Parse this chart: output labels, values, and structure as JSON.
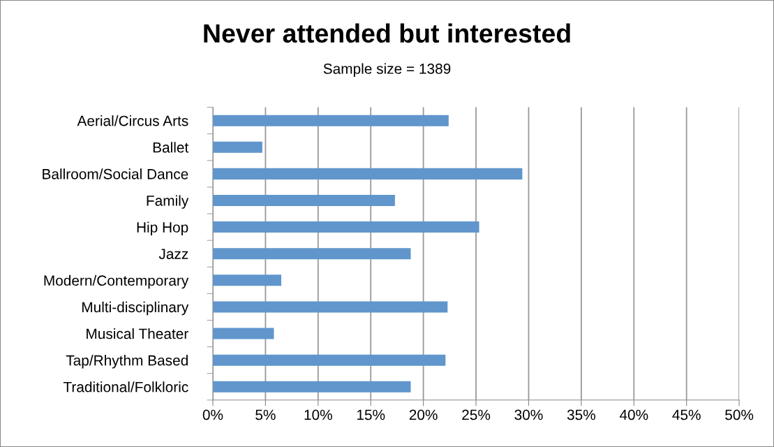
{
  "chart_data": {
    "type": "bar",
    "orientation": "horizontal",
    "title": "Never attended but interested",
    "subtitle": "Sample size = 1389",
    "categories": [
      "Aerial/Circus Arts",
      "Ballet",
      "Ballroom/Social Dance",
      "Family",
      "Hip Hop",
      "Jazz",
      "Modern/Contemporary",
      "Multi-disciplinary",
      "Musical Theater",
      "Tap/Rhythm Based",
      "Traditional/Folkloric"
    ],
    "series": [
      {
        "color": "#6096cc",
        "values": [
          22.4,
          4.7,
          29.4,
          17.3,
          25.3,
          18.8,
          6.5,
          22.3,
          5.8,
          22.1,
          18.8
        ]
      }
    ],
    "xlim": [
      0,
      50
    ],
    "xticks": [
      {
        "value": 0,
        "label": "0%"
      },
      {
        "value": 5,
        "label": "5%"
      },
      {
        "value": 10,
        "label": "10%"
      },
      {
        "value": 15,
        "label": "15%"
      },
      {
        "value": 20,
        "label": "20%"
      },
      {
        "value": 25,
        "label": "25%"
      },
      {
        "value": 30,
        "label": "30%"
      },
      {
        "value": 35,
        "label": "35%"
      },
      {
        "value": 40,
        "label": "40%"
      },
      {
        "value": 45,
        "label": "45%"
      },
      {
        "value": 50,
        "label": "50%"
      }
    ],
    "grid": "x",
    "legend": false
  }
}
